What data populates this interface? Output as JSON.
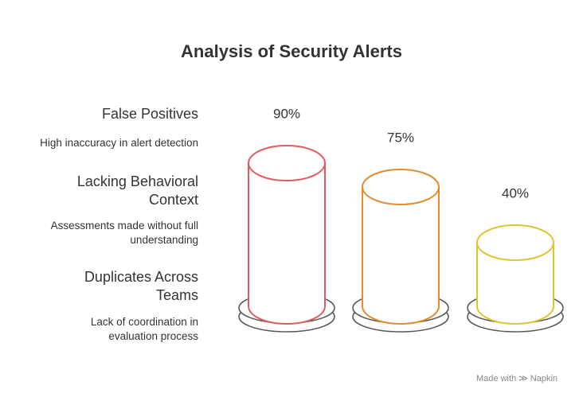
{
  "chart_data": {
    "type": "cylinder",
    "title": "Analysis of Security Alerts",
    "categories": [
      "False Positives",
      "Lacking Behavioral Context",
      "Duplicates Across Teams"
    ],
    "descriptions": [
      "High inaccuracy in alert detection",
      "Assessments made without full understanding",
      "Lack of coordination in evaluation process"
    ],
    "values": [
      90,
      75,
      40
    ],
    "value_labels": [
      "90%",
      "75%",
      "40%"
    ],
    "colors": [
      "#e25b5b",
      "#e38b2d",
      "#ddc52b"
    ]
  },
  "footer": {
    "made_with": "Made with",
    "brand": "Napkin"
  }
}
